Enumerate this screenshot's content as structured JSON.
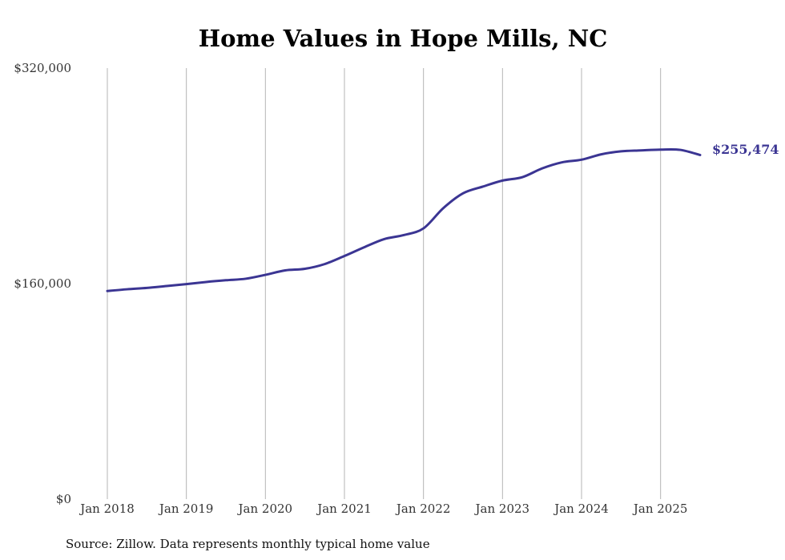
{
  "chart_data": {
    "type": "line",
    "title": "Home Values in Hope Mills, NC",
    "xlabel": "",
    "ylabel": "",
    "ylim": [
      0,
      320000
    ],
    "y_ticks": [
      {
        "value": 0,
        "label": "$0"
      },
      {
        "value": 160000,
        "label": "$160,000"
      },
      {
        "value": 320000,
        "label": "$320,000"
      }
    ],
    "x_ticks": [
      {
        "x": 2018.0,
        "label": "Jan 2018"
      },
      {
        "x": 2019.0,
        "label": "Jan 2019"
      },
      {
        "x": 2020.0,
        "label": "Jan 2020"
      },
      {
        "x": 2021.0,
        "label": "Jan 2021"
      },
      {
        "x": 2022.0,
        "label": "Jan 2022"
      },
      {
        "x": 2023.0,
        "label": "Jan 2023"
      },
      {
        "x": 2024.0,
        "label": "Jan 2024"
      },
      {
        "x": 2025.0,
        "label": "Jan 2025"
      }
    ],
    "xlim": [
      2018.0,
      2025.5
    ],
    "grid": "vertical",
    "line_color": "#3b3593",
    "series": [
      {
        "x": [
          2018.0,
          2018.25,
          2018.5,
          2018.75,
          2019.0,
          2019.25,
          2019.5,
          2019.75,
          2020.0,
          2020.25,
          2020.5,
          2020.75,
          2021.0,
          2021.25,
          2021.5,
          2021.75,
          2022.0,
          2022.25,
          2022.5,
          2022.75,
          2023.0,
          2023.25,
          2023.5,
          2023.75,
          2024.0,
          2024.25,
          2024.5,
          2024.75,
          2025.0,
          2025.25,
          2025.5
        ],
        "values": [
          154500,
          155800,
          156800,
          158200,
          159600,
          161200,
          162500,
          163600,
          166500,
          169800,
          171000,
          174500,
          180500,
          187000,
          193000,
          196000,
          201000,
          216000,
          227000,
          232000,
          236500,
          239000,
          245500,
          250000,
          252000,
          256000,
          258200,
          258900,
          259500,
          259300,
          255474
        ]
      }
    ],
    "end_label": "$255,474",
    "source": "Source: Zillow. Data represents monthly typical home value"
  }
}
